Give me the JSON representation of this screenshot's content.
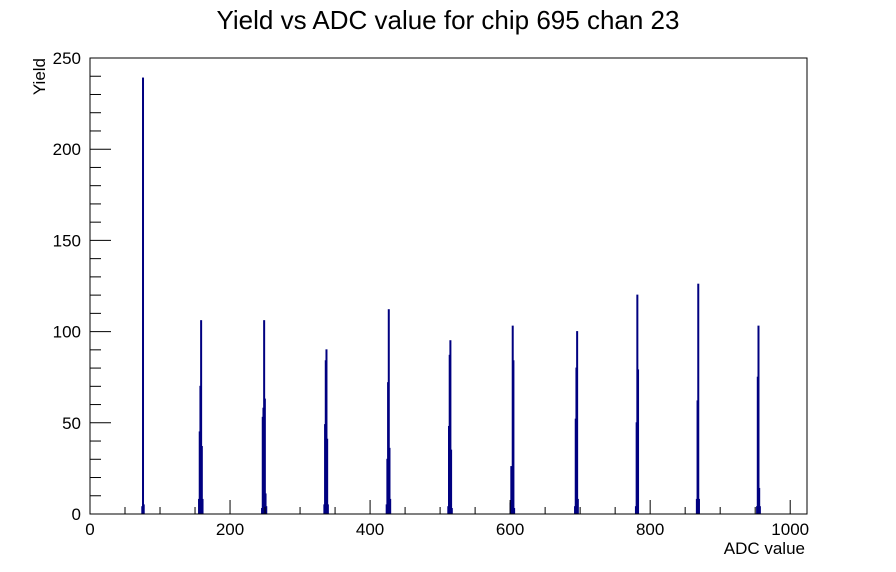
{
  "chart_data": {
    "type": "bar",
    "title": "Yield vs ADC value for chip 695 chan 23",
    "xlabel": "ADC value",
    "ylabel": "Yield",
    "xlim": [
      0,
      1024
    ],
    "ylim": [
      0,
      250
    ],
    "x_ticks": [
      0,
      200,
      400,
      600,
      800,
      1000
    ],
    "x_tick_labels": [
      "0",
      "200",
      "400",
      "600",
      "800",
      "1000"
    ],
    "y_ticks": [
      0,
      50,
      100,
      150,
      200,
      250
    ],
    "y_tick_labels": [
      "0",
      "50",
      "100",
      "150",
      "200",
      "250"
    ],
    "grid": false,
    "legend": "none",
    "line_color": "#000080",
    "bin_width": 1,
    "series": [
      {
        "values": [
          {
            "x": 74,
            "y": 4
          },
          {
            "x": 75,
            "y": 239
          },
          {
            "x": 76,
            "y": 5
          },
          {
            "x": 155,
            "y": 8
          },
          {
            "x": 156,
            "y": 45
          },
          {
            "x": 157,
            "y": 70
          },
          {
            "x": 158,
            "y": 106
          },
          {
            "x": 159,
            "y": 37
          },
          {
            "x": 160,
            "y": 8
          },
          {
            "x": 245,
            "y": 3
          },
          {
            "x": 246,
            "y": 53
          },
          {
            "x": 247,
            "y": 58
          },
          {
            "x": 248,
            "y": 106
          },
          {
            "x": 249,
            "y": 63
          },
          {
            "x": 250,
            "y": 11
          },
          {
            "x": 251,
            "y": 4
          },
          {
            "x": 334,
            "y": 5
          },
          {
            "x": 335,
            "y": 49
          },
          {
            "x": 336,
            "y": 84
          },
          {
            "x": 337,
            "y": 90
          },
          {
            "x": 338,
            "y": 41
          },
          {
            "x": 339,
            "y": 5
          },
          {
            "x": 423,
            "y": 5
          },
          {
            "x": 424,
            "y": 30
          },
          {
            "x": 425,
            "y": 72
          },
          {
            "x": 426,
            "y": 112
          },
          {
            "x": 427,
            "y": 36
          },
          {
            "x": 428,
            "y": 8
          },
          {
            "x": 511,
            "y": 4
          },
          {
            "x": 512,
            "y": 48
          },
          {
            "x": 513,
            "y": 87
          },
          {
            "x": 514,
            "y": 95
          },
          {
            "x": 515,
            "y": 35
          },
          {
            "x": 516,
            "y": 3
          },
          {
            "x": 600,
            "y": 6
          },
          {
            "x": 601,
            "y": 26
          },
          {
            "x": 602,
            "y": 10
          },
          {
            "x": 603,
            "y": 103
          },
          {
            "x": 604,
            "y": 84
          },
          {
            "x": 605,
            "y": 3
          },
          {
            "x": 692,
            "y": 4
          },
          {
            "x": 693,
            "y": 52
          },
          {
            "x": 694,
            "y": 80
          },
          {
            "x": 695,
            "y": 100
          },
          {
            "x": 696,
            "y": 8
          },
          {
            "x": 779,
            "y": 4
          },
          {
            "x": 780,
            "y": 50
          },
          {
            "x": 781,
            "y": 120
          },
          {
            "x": 782,
            "y": 79
          },
          {
            "x": 866,
            "y": 8
          },
          {
            "x": 867,
            "y": 62
          },
          {
            "x": 868,
            "y": 126
          },
          {
            "x": 869,
            "y": 8
          },
          {
            "x": 952,
            "y": 4
          },
          {
            "x": 953,
            "y": 75
          },
          {
            "x": 954,
            "y": 103
          },
          {
            "x": 955,
            "y": 14
          },
          {
            "x": 956,
            "y": 4
          }
        ]
      }
    ]
  }
}
